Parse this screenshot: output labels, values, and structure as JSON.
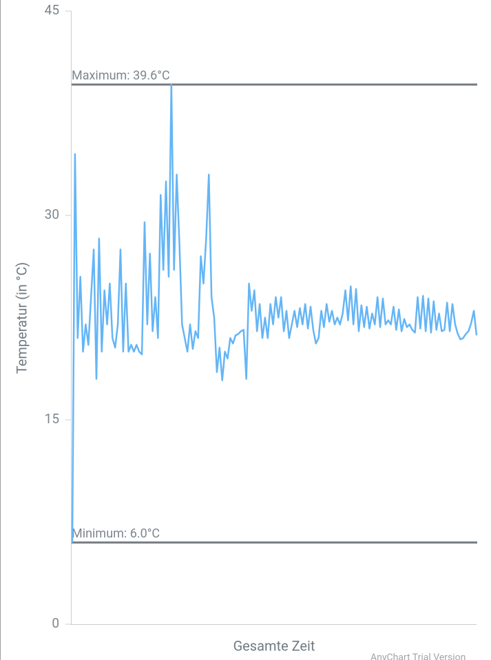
{
  "chart_data": {
    "type": "line",
    "y_axis_label": "Temperatur (in °C)",
    "x_axis_label": "Gesamte Zeit",
    "watermark": "AnyChart Trial Version",
    "color": "#64b5f6",
    "ylim": [
      0,
      45
    ],
    "yticks": [
      0,
      15,
      30,
      45
    ],
    "annotations": [
      {
        "label": "Maximum: 39.6°C",
        "value": 39.6
      },
      {
        "label": "Minimum: 6.0°C",
        "value": 6.0
      }
    ],
    "values": [
      6,
      34.5,
      21,
      25.5,
      20,
      22,
      20.5,
      24,
      27.5,
      18,
      28.3,
      20,
      24.5,
      22,
      25,
      21,
      20.3,
      22,
      27.5,
      20,
      25,
      20,
      20.5,
      20,
      20.5,
      20,
      19.8,
      29.5,
      22,
      27.2,
      21.5,
      24,
      21,
      31.5,
      26,
      32.5,
      25.5,
      39.6,
      26,
      33,
      28,
      22,
      21,
      20,
      22,
      20.2,
      21.5,
      21,
      27,
      25,
      28.3,
      33,
      24,
      22.5,
      18.5,
      20.3,
      17.9,
      20,
      19.5,
      21,
      20.6,
      21.2,
      21.3,
      21.5,
      21.6,
      18,
      25,
      23,
      24.5,
      21.5,
      23.5,
      21,
      22.5,
      21,
      23.5,
      22,
      24,
      22.5,
      24,
      21.5,
      23,
      21,
      22,
      23,
      21.8,
      23.2,
      22,
      23.5,
      21.7,
      23.3,
      21.6,
      20.6,
      21,
      23,
      21.8,
      23.5,
      22.2,
      23,
      22,
      22.5,
      22,
      22.8,
      24.5,
      22.3,
      24.8,
      22,
      24.6,
      21.5,
      23.4,
      21.8,
      23.3,
      21.7,
      22.8,
      22,
      24,
      21.8,
      23.9,
      22,
      22.3,
      22,
      23.3,
      21.6,
      23.1,
      21.5,
      22.4,
      21.8,
      22,
      21.6,
      21.4,
      24,
      21.7,
      24.1,
      21.5,
      23.9,
      21.4,
      23.7,
      21.6,
      22.8,
      21.5,
      21.6,
      23.6,
      21.5,
      23.5,
      22,
      21.3,
      20.9,
      21,
      21.3,
      21.5,
      22.1,
      23,
      21.2
    ]
  }
}
